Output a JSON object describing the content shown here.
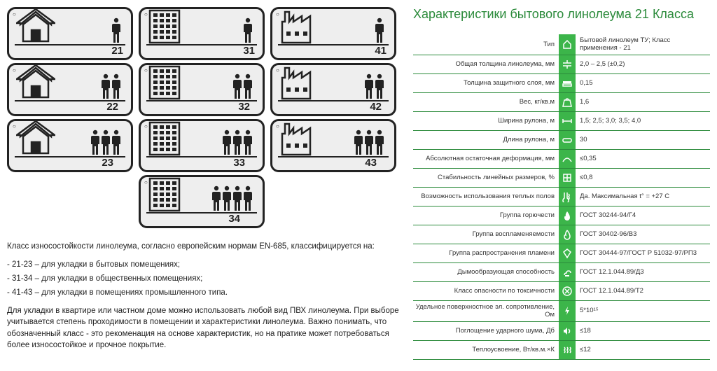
{
  "classesGrid": [
    {
      "type": "house",
      "people": 1,
      "num": "21",
      "col": 1,
      "row": 1
    },
    {
      "type": "office",
      "people": 1,
      "num": "31",
      "col": 2,
      "row": 1
    },
    {
      "type": "factory",
      "people": 1,
      "num": "41",
      "col": 3,
      "row": 1
    },
    {
      "type": "house",
      "people": 2,
      "num": "22",
      "col": 1,
      "row": 2
    },
    {
      "type": "office",
      "people": 2,
      "num": "32",
      "col": 2,
      "row": 2
    },
    {
      "type": "factory",
      "people": 2,
      "num": "42",
      "col": 3,
      "row": 2
    },
    {
      "type": "house",
      "people": 3,
      "num": "23",
      "col": 1,
      "row": 3
    },
    {
      "type": "office",
      "people": 3,
      "num": "33",
      "col": 2,
      "row": 3
    },
    {
      "type": "factory",
      "people": 3,
      "num": "43",
      "col": 3,
      "row": 3
    },
    {
      "type": "office",
      "people": 4,
      "num": "34",
      "col": 2,
      "row": 4
    }
  ],
  "desc": {
    "intro": "Класс износостойкости линолеума, согласно европейским нормам EN-685,  классифицируется на:",
    "bullets": [
      "- 21-23 – для укладки в бытовых помещениях;",
      "- 31-34 – для укладки в общественных помещениях;",
      "- 41-43 – для укладки в помещениях промышленного типа."
    ],
    "p2": "Для укладки в квартире или частном доме можно использовать любой вид ПВХ линолеума. При выборе учитывается степень проходимости в помещении и характеристики линолеума. Важно понимать, что обозначенный класс - это рекоменация на основе характеристик, но на пратике может потребоваться более износостойкое и прочное покрытие."
  },
  "specs": {
    "title": "Характеристики бытового линолеума 21 Класса",
    "rows": [
      {
        "label": "Тип",
        "value": "Бытовой линолеум ТУ; Класс применения - 21",
        "icon": "home"
      },
      {
        "label": "Общая толщина линолеума, мм",
        "value": "2,0 – 2,5 (±0,2)",
        "icon": "thickness"
      },
      {
        "label": "Толщина защитного слоя, мм",
        "value": "0,15",
        "icon": "layer"
      },
      {
        "label": "Вес, кг/кв.м",
        "value": "1,6",
        "icon": "weight"
      },
      {
        "label": "Ширина рулона, м",
        "value": "1,5; 2,5; 3,0; 3,5; 4,0",
        "icon": "width"
      },
      {
        "label": "Длина рулона, м",
        "value": "30",
        "icon": "length"
      },
      {
        "label": "Абсолютная остаточная деформация, мм",
        "value": "≤0,35",
        "icon": "deform"
      },
      {
        "label": "Стабильность линейных размеров, %",
        "value": "≤0,8",
        "icon": "stability"
      },
      {
        "label": "Возможность использования теплых полов",
        "value": "Да. Максимальная t° = +27 C",
        "icon": "heat"
      },
      {
        "label": "Группа горючести",
        "value": "ГОСТ 30244-94/Г4",
        "icon": "fire"
      },
      {
        "label": "Группа воспламеняемости",
        "value": "ГОСТ 30402-96/В3",
        "icon": "flame"
      },
      {
        "label": "Группа распространения пламени",
        "value": "ГОСТ 30444-97/ГОСТ Р 51032-97/РП3",
        "icon": "spread"
      },
      {
        "label": "Дымообразующая способность",
        "value": "ГОСТ 12.1.044.89/Д3",
        "icon": "smoke"
      },
      {
        "label": "Класс опасности по токсичности",
        "value": "ГОСТ 12.1.044.89/Т2",
        "icon": "toxic"
      },
      {
        "label": "Удельное поверхностное эл. сопротивление, Ом",
        "value": "5*10¹⁵",
        "icon": "elec"
      },
      {
        "label": "Поглощение ударного шума, Дб",
        "value": "≤18",
        "icon": "sound"
      },
      {
        "label": "Теплоусвоение, Вт/кв.м.×К",
        "value": "≤12",
        "icon": "thermal"
      }
    ]
  }
}
